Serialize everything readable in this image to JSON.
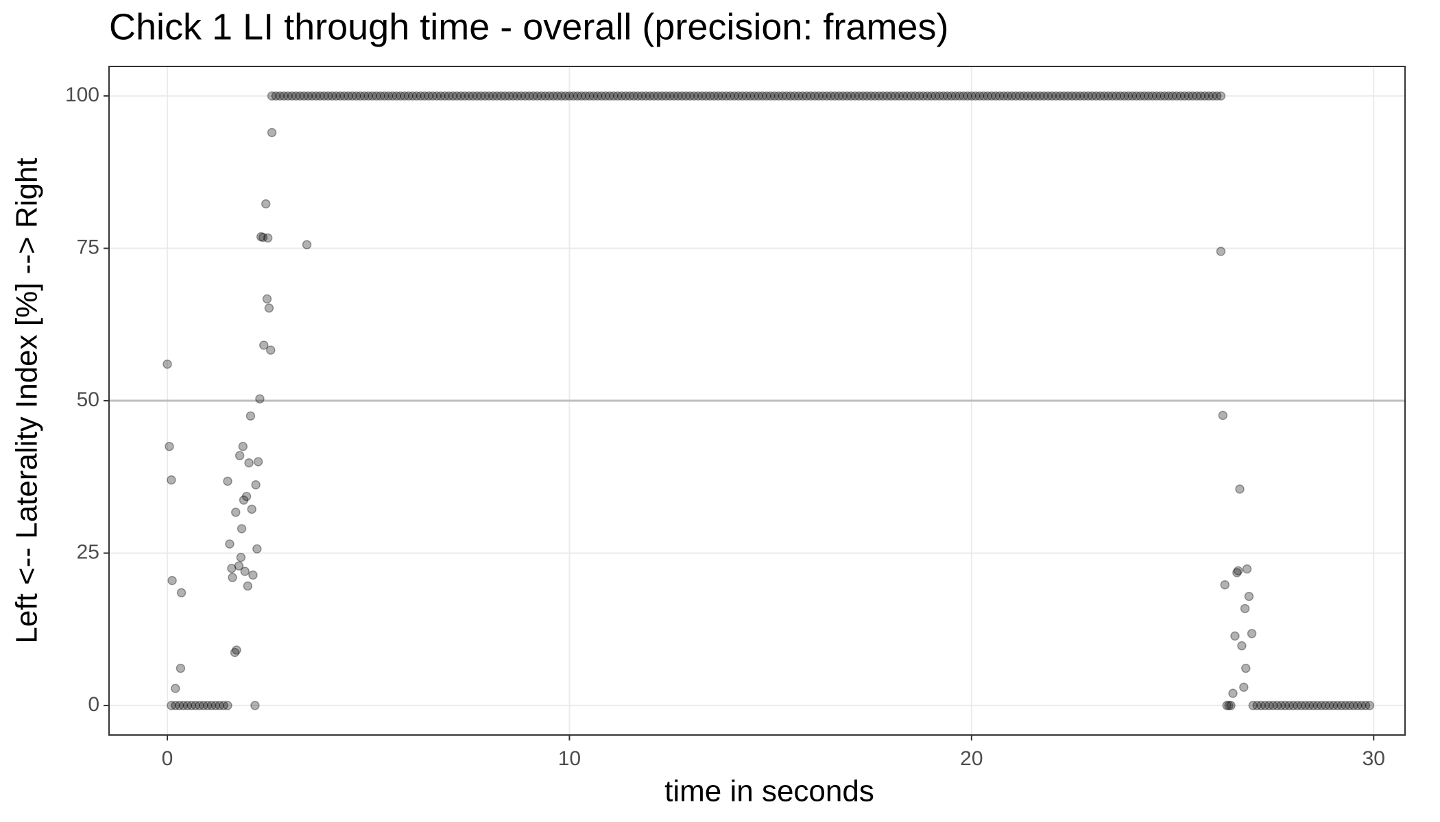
{
  "chart_data": {
    "type": "scatter",
    "title": "Chick 1 LI through time - overall (precision: frames)",
    "x_label": "time in seconds",
    "y_label": "Left <-- Laterality Index [%] --> Right",
    "color": "#000000",
    "reference_line": 50,
    "grid": true,
    "xlim": [
      -1.45,
      30.78
    ],
    "xticks": [
      0,
      10,
      20,
      30
    ],
    "ylim": [
      -4.84,
      104.84
    ],
    "yticks": [
      0,
      25,
      50,
      75,
      100
    ],
    "x": [
      0.0,
      0.05,
      0.1,
      0.12,
      0.2,
      0.33,
      0.35,
      0.1,
      0.2,
      0.3,
      0.4,
      0.5,
      0.6,
      0.7,
      0.8,
      0.9,
      1.0,
      1.1,
      1.2,
      1.3,
      1.4,
      1.5,
      1.5,
      1.55,
      1.6,
      1.62,
      1.68,
      1.72,
      1.7,
      1.78,
      1.8,
      1.83,
      1.85,
      1.88,
      1.9,
      1.93,
      1.97,
      2.0,
      2.03,
      2.07,
      2.1,
      2.13,
      2.18,
      2.2,
      2.23,
      2.26,
      2.3,
      2.33,
      2.38,
      2.4,
      2.45,
      2.48,
      2.5,
      2.53,
      2.57,
      2.6,
      3.47,
      2.6,
      2.7,
      2.8,
      2.9,
      3.0,
      3.1,
      3.2,
      3.3,
      3.4,
      3.5,
      3.6,
      3.7,
      3.8,
      3.9,
      4.0,
      4.1,
      4.2,
      4.3,
      4.4,
      4.5,
      4.6,
      4.7,
      4.8,
      4.9,
      5.0,
      5.1,
      5.2,
      5.3,
      5.4,
      5.5,
      5.6,
      5.7,
      5.8,
      5.9,
      6.0,
      6.1,
      6.2,
      6.3,
      6.4,
      6.5,
      6.6,
      6.7,
      6.8,
      6.9,
      7.0,
      7.1,
      7.2,
      7.3,
      7.4,
      7.5,
      7.6,
      7.7,
      7.8,
      7.9,
      8.0,
      8.1,
      8.2,
      8.3,
      8.4,
      8.5,
      8.6,
      8.7,
      8.8,
      8.9,
      9.0,
      9.1,
      9.2,
      9.3,
      9.4,
      9.5,
      9.6,
      9.7,
      9.8,
      9.9,
      10.0,
      10.1,
      10.2,
      10.3,
      10.4,
      10.5,
      10.6,
      10.7,
      10.8,
      10.9,
      11.0,
      11.1,
      11.2,
      11.3,
      11.4,
      11.5,
      11.6,
      11.7,
      11.8,
      11.9,
      12.0,
      12.1,
      12.2,
      12.3,
      12.4,
      12.5,
      12.6,
      12.7,
      12.8,
      12.9,
      13.0,
      13.1,
      13.2,
      13.3,
      13.4,
      13.5,
      13.6,
      13.7,
      13.8,
      13.9,
      14.0,
      14.1,
      14.2,
      14.3,
      14.4,
      14.5,
      14.6,
      14.7,
      14.8,
      14.9,
      15.0,
      15.1,
      15.2,
      15.3,
      15.4,
      15.5,
      15.6,
      15.7,
      15.8,
      15.9,
      16.0,
      16.1,
      16.2,
      16.3,
      16.4,
      16.5,
      16.6,
      16.7,
      16.8,
      16.9,
      17.0,
      17.1,
      17.2,
      17.3,
      17.4,
      17.5,
      17.6,
      17.7,
      17.8,
      17.9,
      18.0,
      18.1,
      18.2,
      18.3,
      18.4,
      18.5,
      18.6,
      18.7,
      18.8,
      18.9,
      19.0,
      19.1,
      19.2,
      19.3,
      19.4,
      19.5,
      19.6,
      19.7,
      19.8,
      19.9,
      20.0,
      20.1,
      20.2,
      20.3,
      20.4,
      20.5,
      20.6,
      20.7,
      20.8,
      20.9,
      21.0,
      21.1,
      21.2,
      21.3,
      21.4,
      21.5,
      21.6,
      21.7,
      21.8,
      21.9,
      22.0,
      22.1,
      22.2,
      22.3,
      22.4,
      22.5,
      22.6,
      22.7,
      22.8,
      22.9,
      23.0,
      23.1,
      23.2,
      23.3,
      23.4,
      23.5,
      23.6,
      23.7,
      23.8,
      23.9,
      24.0,
      24.1,
      24.2,
      24.3,
      24.4,
      24.5,
      24.6,
      24.7,
      24.8,
      24.9,
      25.0,
      25.1,
      25.2,
      25.3,
      25.4,
      25.5,
      25.6,
      25.7,
      25.8,
      25.9,
      26.0,
      26.1,
      26.2,
      26.2,
      26.25,
      26.3,
      26.35,
      26.4,
      26.45,
      26.5,
      26.55,
      26.6,
      26.63,
      26.67,
      26.72,
      26.77,
      26.8,
      26.82,
      26.85,
      26.9,
      26.97,
      27.0,
      27.1,
      27.2,
      27.3,
      27.4,
      27.5,
      27.6,
      27.7,
      27.8,
      27.9,
      28.0,
      28.1,
      28.2,
      28.3,
      28.4,
      28.5,
      28.6,
      28.7,
      28.8,
      28.9,
      29.0,
      29.1,
      29.2,
      29.3,
      29.4,
      29.5,
      29.6,
      29.7,
      29.8,
      29.9
    ],
    "values": [
      56,
      42.5,
      37,
      20.5,
      2.8,
      6.1,
      18.5,
      0,
      0,
      0,
      0,
      0,
      0,
      0,
      0,
      0,
      0,
      0,
      0,
      0,
      0,
      0,
      36.8,
      26.5,
      22.5,
      21,
      8.7,
      9.1,
      31.7,
      22.9,
      41,
      24.3,
      29,
      42.5,
      33.7,
      22,
      34.3,
      19.6,
      39.8,
      47.5,
      32.2,
      21.4,
      0,
      36.2,
      25.7,
      40,
      50.3,
      76.9,
      76.8,
      59.1,
      82.3,
      66.7,
      76.7,
      65.2,
      58.3,
      94,
      75.6,
      100,
      100,
      100,
      100,
      100,
      100,
      100,
      100,
      100,
      100,
      100,
      100,
      100,
      100,
      100,
      100,
      100,
      100,
      100,
      100,
      100,
      100,
      100,
      100,
      100,
      100,
      100,
      100,
      100,
      100,
      100,
      100,
      100,
      100,
      100,
      100,
      100,
      100,
      100,
      100,
      100,
      100,
      100,
      100,
      100,
      100,
      100,
      100,
      100,
      100,
      100,
      100,
      100,
      100,
      100,
      100,
      100,
      100,
      100,
      100,
      100,
      100,
      100,
      100,
      100,
      100,
      100,
      100,
      100,
      100,
      100,
      100,
      100,
      100,
      100,
      100,
      100,
      100,
      100,
      100,
      100,
      100,
      100,
      100,
      100,
      100,
      100,
      100,
      100,
      100,
      100,
      100,
      100,
      100,
      100,
      100,
      100,
      100,
      100,
      100,
      100,
      100,
      100,
      100,
      100,
      100,
      100,
      100,
      100,
      100,
      100,
      100,
      100,
      100,
      100,
      100,
      100,
      100,
      100,
      100,
      100,
      100,
      100,
      100,
      100,
      100,
      100,
      100,
      100,
      100,
      100,
      100,
      100,
      100,
      100,
      100,
      100,
      100,
      100,
      100,
      100,
      100,
      100,
      100,
      100,
      100,
      100,
      100,
      100,
      100,
      100,
      100,
      100,
      100,
      100,
      100,
      100,
      100,
      100,
      100,
      100,
      100,
      100,
      100,
      100,
      100,
      100,
      100,
      100,
      100,
      100,
      100,
      100,
      100,
      100,
      100,
      100,
      100,
      100,
      100,
      100,
      100,
      100,
      100,
      100,
      100,
      100,
      100,
      100,
      100,
      100,
      100,
      100,
      100,
      100,
      100,
      100,
      100,
      100,
      100,
      100,
      100,
      100,
      100,
      100,
      100,
      100,
      100,
      100,
      100,
      100,
      100,
      100,
      100,
      100,
      100,
      100,
      100,
      100,
      100,
      100,
      100,
      100,
      100,
      100,
      100,
      100,
      100,
      100,
      100,
      100,
      100,
      100,
      100,
      100,
      100,
      100,
      74.5,
      47.6,
      19.8,
      0,
      0,
      0,
      2,
      11.4,
      21.8,
      22.1,
      35.5,
      9.8,
      3,
      15.9,
      6.1,
      22.4,
      17.9,
      11.8,
      0,
      0,
      0,
      0,
      0,
      0,
      0,
      0,
      0,
      0,
      0,
      0,
      0,
      0,
      0,
      0,
      0,
      0,
      0,
      0,
      0,
      0,
      0,
      0,
      0,
      0,
      0,
      0,
      0,
      0
    ]
  }
}
